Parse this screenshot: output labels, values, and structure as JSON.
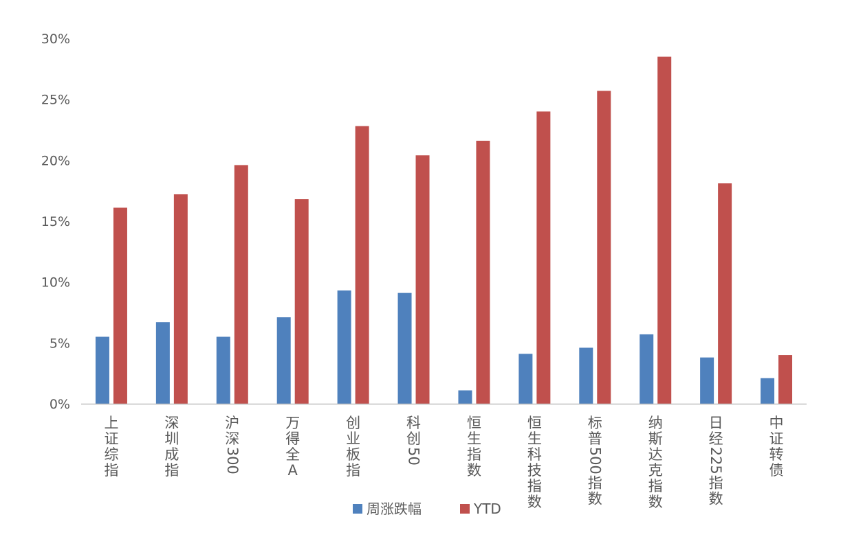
{
  "chart_data": {
    "type": "bar",
    "title": "",
    "xlabel": "",
    "ylabel": "",
    "categories": [
      "上证综指",
      "深圳成指",
      "沪深300",
      "万得全A",
      "创业板指",
      "科创50",
      "恒生指数",
      "恒生科技指数",
      "标普500指数",
      "纳斯达克指数",
      "日经225指数",
      "中证转债"
    ],
    "series": [
      {
        "name": "周涨跌幅",
        "color": "#4f81bd",
        "values": [
          5.5,
          6.7,
          5.5,
          7.1,
          9.3,
          9.1,
          1.1,
          4.1,
          4.6,
          5.7,
          3.8,
          2.1
        ]
      },
      {
        "name": "YTD",
        "color": "#c0504d",
        "values": [
          16.1,
          17.2,
          19.6,
          16.8,
          22.8,
          20.4,
          21.6,
          24.0,
          25.7,
          28.5,
          18.1,
          4.0
        ]
      }
    ],
    "ylim": [
      0,
      30
    ],
    "yticks": [
      0,
      5,
      10,
      15,
      20,
      25,
      30
    ],
    "ytick_labels": [
      "0%",
      "5%",
      "10%",
      "15%",
      "20%",
      "25%",
      "30%"
    ],
    "grid": false,
    "legend_position": "bottom"
  }
}
